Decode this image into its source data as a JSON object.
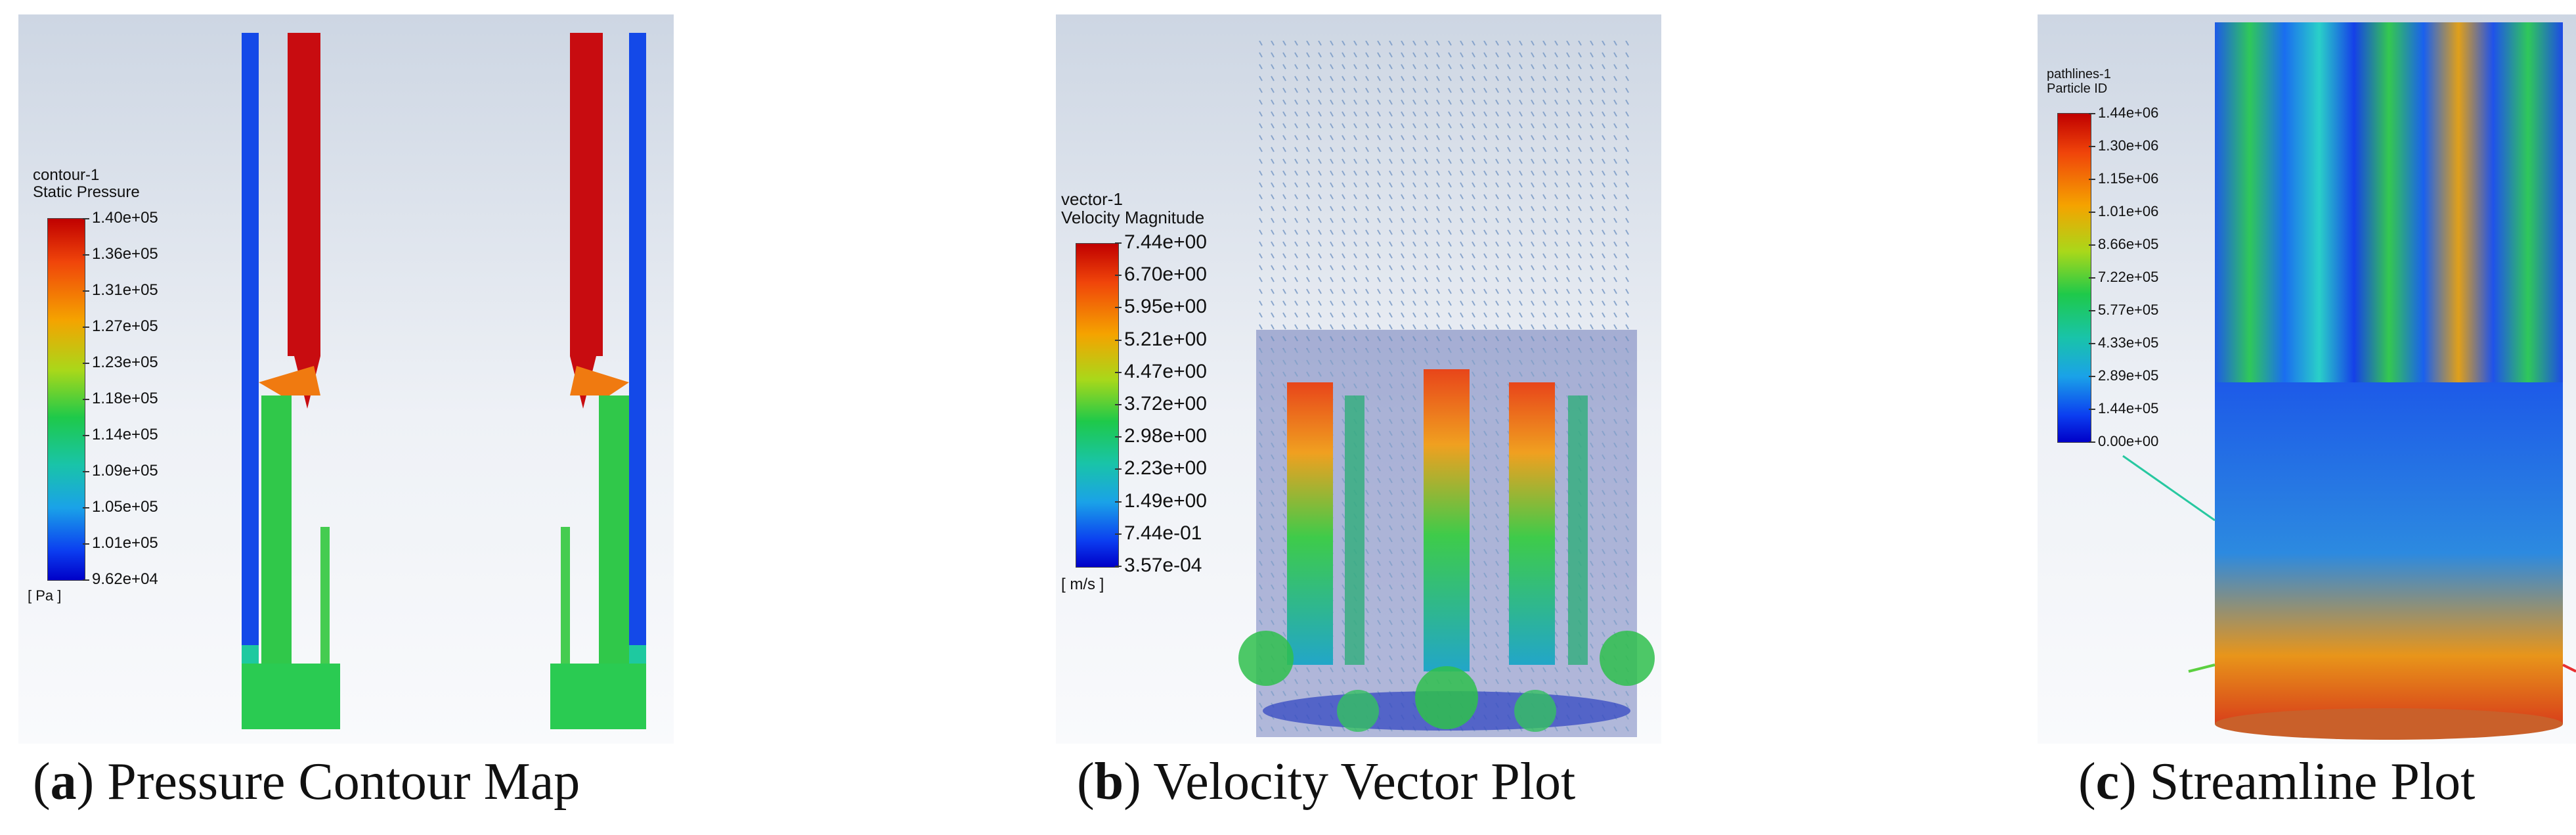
{
  "panels": [
    {
      "caption_letter": "a",
      "caption_text": "Pressure Contour Map",
      "legend_name": "contour-1",
      "legend_quantity": "Static Pressure",
      "ticks": [
        "1.40e+05",
        "1.36e+05",
        "1.31e+05",
        "1.27e+05",
        "1.23e+05",
        "1.18e+05",
        "1.14e+05",
        "1.09e+05",
        "1.05e+05",
        "1.01e+05",
        "9.62e+04"
      ],
      "unit": "[ Pa ]"
    },
    {
      "caption_letter": "b",
      "caption_text": "Velocity Vector Plot",
      "legend_name": "vector-1",
      "legend_quantity": "Velocity Magnitude",
      "ticks": [
        "7.44e+00",
        "6.70e+00",
        "5.95e+00",
        "5.21e+00",
        "4.47e+00",
        "3.72e+00",
        "2.98e+00",
        "2.23e+00",
        "1.49e+00",
        "7.44e-01",
        "3.57e-04"
      ],
      "unit": "[ m/s ]"
    },
    {
      "caption_letter": "c",
      "caption_text": "Streamline Plot",
      "legend_name": "pathlines-1",
      "legend_quantity": "Particle ID",
      "ticks": [
        "1.44e+06",
        "1.30e+06",
        "1.15e+06",
        "1.01e+06",
        "8.66e+05",
        "7.22e+05",
        "5.77e+05",
        "4.33e+05",
        "2.89e+05",
        "1.44e+05",
        "0.00e+00"
      ],
      "unit": ""
    }
  ],
  "colors": {
    "high": "#c00000",
    "mid": "#1ec94a",
    "low": "#0000c8"
  }
}
